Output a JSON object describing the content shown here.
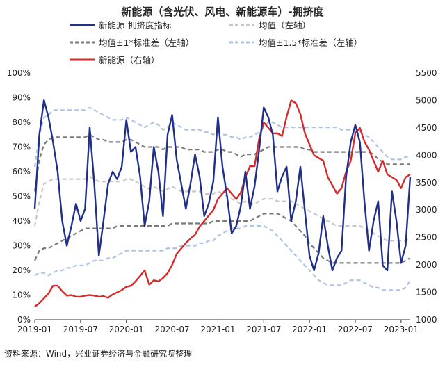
{
  "title": "新能源（含光伏、风电、新能源车）-拥挤度",
  "source": "资料来源：Wind，兴业证券经济与金融研究院整理",
  "chart_data": {
    "type": "line",
    "title": "新能源（含光伏、风电、新能源车）-拥挤度",
    "xlabel": "",
    "ylabel_left": "",
    "ylabel_right": "",
    "ylim_left": [
      0,
      100
    ],
    "ylim_right": [
      1000,
      5500
    ],
    "left_ticks": [
      "0%",
      "10%",
      "20%",
      "30%",
      "40%",
      "50%",
      "60%",
      "70%",
      "80%",
      "90%",
      "100%"
    ],
    "right_ticks": [
      "1000",
      "1500",
      "2000",
      "2500",
      "3000",
      "3500",
      "4000",
      "4500",
      "5000",
      "5500"
    ],
    "x_ticks": [
      "2019-01",
      "2019-07",
      "2020-01",
      "2020-07",
      "2021-01",
      "2021-07",
      "2022-01",
      "2022-07",
      "2023-01"
    ],
    "grid": false,
    "legend_position": "top",
    "x": [
      2019.0,
      2019.05,
      2019.1,
      2019.15,
      2019.2,
      2019.25,
      2019.3,
      2019.35,
      2019.4,
      2019.45,
      2019.5,
      2019.55,
      2019.6,
      2019.65,
      2019.7,
      2019.75,
      2019.8,
      2019.85,
      2019.9,
      2019.95,
      2020.0,
      2020.05,
      2020.1,
      2020.15,
      2020.2,
      2020.25,
      2020.3,
      2020.35,
      2020.4,
      2020.45,
      2020.5,
      2020.55,
      2020.6,
      2020.65,
      2020.7,
      2020.75,
      2020.8,
      2020.85,
      2020.9,
      2020.95,
      2021.0,
      2021.05,
      2021.1,
      2021.15,
      2021.2,
      2021.25,
      2021.3,
      2021.35,
      2021.4,
      2021.45,
      2021.5,
      2021.55,
      2021.6,
      2021.65,
      2021.7,
      2021.75,
      2021.8,
      2021.85,
      2021.9,
      2021.95,
      2022.0,
      2022.05,
      2022.1,
      2022.15,
      2022.2,
      2022.25,
      2022.3,
      2022.35,
      2022.4,
      2022.45,
      2022.5,
      2022.55,
      2022.6,
      2022.65,
      2022.7,
      2022.75,
      2022.8,
      2022.85,
      2022.9,
      2022.95,
      2023.0,
      2023.05,
      2023.1
    ],
    "series": [
      {
        "name": "新能源-拥挤度指标",
        "axis": "left",
        "color": "#1f2f8a",
        "dash": "solid",
        "values": [
          45,
          75,
          89,
          82,
          72,
          60,
          40,
          30,
          38,
          47,
          40,
          45,
          78,
          55,
          26,
          40,
          55,
          60,
          57,
          62,
          81,
          68,
          70,
          58,
          38,
          48,
          70,
          60,
          42,
          75,
          83,
          65,
          55,
          45,
          55,
          67,
          58,
          42,
          47,
          56,
          82,
          62,
          50,
          35,
          38,
          46,
          60,
          45,
          54,
          69,
          86,
          82,
          75,
          52,
          58,
          62,
          40,
          48,
          62,
          44,
          26,
          20,
          27,
          42,
          30,
          20,
          25,
          28,
          58,
          72,
          79,
          72,
          48,
          28,
          40,
          48,
          22,
          20,
          52,
          40,
          23,
          30,
          58
        ]
      },
      {
        "name": "均值（左轴）",
        "axis": "left",
        "color": "#c8c8c8",
        "dash": "dashed",
        "values": [
          38,
          48,
          55,
          56,
          57,
          57,
          57,
          57,
          57,
          57,
          57,
          57,
          58,
          57,
          56,
          56,
          56,
          56,
          56,
          56,
          57,
          57,
          56,
          55,
          54,
          53,
          54,
          53,
          52,
          53,
          54,
          53,
          52,
          52,
          52,
          52,
          52,
          51,
          51,
          51,
          52,
          51,
          50,
          49,
          48,
          47,
          48,
          47,
          47,
          48,
          49,
          49,
          49,
          48,
          48,
          48,
          48,
          47,
          46,
          45,
          44,
          43,
          42,
          41,
          40,
          39,
          38,
          38,
          38,
          38,
          38,
          38,
          37,
          36,
          35,
          34,
          33,
          32,
          32,
          32,
          32,
          32,
          33
        ]
      },
      {
        "name": "均值±1*标准差（左轴）",
        "axis": "left",
        "color": "#7a7a7a",
        "dash": "dashed",
        "upper": [
          52,
          65,
          71,
          73,
          74,
          74,
          74,
          74,
          74,
          74,
          74,
          74,
          75,
          74,
          73,
          73,
          72,
          72,
          72,
          72,
          73,
          73,
          72,
          71,
          70,
          70,
          70,
          70,
          69,
          70,
          70,
          70,
          70,
          69,
          69,
          69,
          69,
          68,
          68,
          68,
          69,
          69,
          68,
          68,
          67,
          66,
          67,
          67,
          67,
          68,
          69,
          70,
          70,
          70,
          70,
          70,
          70,
          70,
          70,
          69,
          69,
          68,
          68,
          68,
          68,
          68,
          68,
          68,
          68,
          68,
          68,
          68,
          68,
          68,
          67,
          65,
          64,
          63,
          63,
          63,
          63,
          63,
          63
        ],
        "lower": [
          24,
          28,
          29,
          29,
          30,
          31,
          32,
          33,
          34,
          35,
          36,
          37,
          37,
          37,
          37,
          37,
          37,
          37,
          38,
          38,
          38,
          38,
          38,
          38,
          38,
          38,
          38,
          38,
          38,
          38,
          39,
          39,
          39,
          39,
          39,
          39,
          39,
          39,
          39,
          40,
          40,
          40,
          40,
          40,
          40,
          40,
          40,
          40,
          41,
          42,
          43,
          43,
          43,
          43,
          42,
          41,
          40,
          38,
          36,
          34,
          31,
          29,
          27,
          25,
          24,
          23,
          23,
          23,
          23,
          23,
          23,
          23,
          23,
          23,
          23,
          23,
          23,
          23,
          23,
          23,
          23,
          24,
          25
        ]
      },
      {
        "name": "均值±1.5*标准差（左轴）",
        "axis": "left",
        "color": "#aec3e6",
        "dash": "dashed",
        "upper": [
          62,
          75,
          82,
          83,
          85,
          85,
          85,
          85,
          85,
          85,
          85,
          85,
          86,
          85,
          84,
          83,
          82,
          81,
          81,
          81,
          82,
          81,
          80,
          79,
          78,
          79,
          80,
          79,
          77,
          78,
          80,
          79,
          78,
          77,
          77,
          77,
          77,
          76,
          76,
          75,
          76,
          75,
          75,
          74,
          74,
          73,
          74,
          74,
          75,
          76,
          78,
          80,
          80,
          79,
          78,
          78,
          78,
          78,
          78,
          78,
          78,
          78,
          78,
          78,
          78,
          78,
          78,
          77,
          77,
          77,
          76,
          76,
          75,
          74,
          72,
          70,
          68,
          66,
          65,
          65,
          65,
          66,
          66
        ],
        "lower": [
          18,
          19,
          19,
          18,
          19,
          20,
          20,
          21,
          21,
          22,
          22,
          22,
          23,
          24,
          24,
          24,
          25,
          25,
          26,
          27,
          28,
          28,
          28,
          28,
          28,
          28,
          28,
          28,
          28,
          29,
          29,
          29,
          30,
          30,
          30,
          30,
          31,
          31,
          32,
          32,
          34,
          35,
          36,
          37,
          37,
          37,
          38,
          38,
          38,
          38,
          38,
          37,
          36,
          34,
          32,
          30,
          28,
          26,
          24,
          22,
          20,
          18,
          16,
          15,
          14,
          14,
          14,
          14,
          15,
          16,
          16,
          16,
          15,
          14,
          13,
          13,
          12,
          12,
          12,
          12,
          12,
          13,
          16
        ]
      },
      {
        "name": "新能源（右轴）",
        "axis": "right",
        "color": "#d62a2a",
        "dash": "solid",
        "values": [
          1240,
          1300,
          1390,
          1480,
          1620,
          1620,
          1520,
          1440,
          1450,
          1420,
          1420,
          1440,
          1450,
          1440,
          1420,
          1430,
          1400,
          1460,
          1500,
          1540,
          1600,
          1620,
          1700,
          1800,
          1900,
          1640,
          1720,
          1700,
          1760,
          1850,
          2000,
          2200,
          2300,
          2400,
          2480,
          2550,
          2700,
          2800,
          2900,
          3000,
          3200,
          3300,
          3400,
          3300,
          3200,
          3320,
          3600,
          3800,
          3800,
          4300,
          4600,
          4500,
          4400,
          4400,
          4350,
          4700,
          5000,
          4950,
          4750,
          4400,
          4200,
          4000,
          3950,
          3900,
          3600,
          3450,
          3300,
          3400,
          3700,
          3900,
          4400,
          4500,
          4250,
          4100,
          3900,
          3700,
          3900,
          3650,
          3600,
          3550,
          3400,
          3600,
          3650
        ]
      }
    ]
  }
}
